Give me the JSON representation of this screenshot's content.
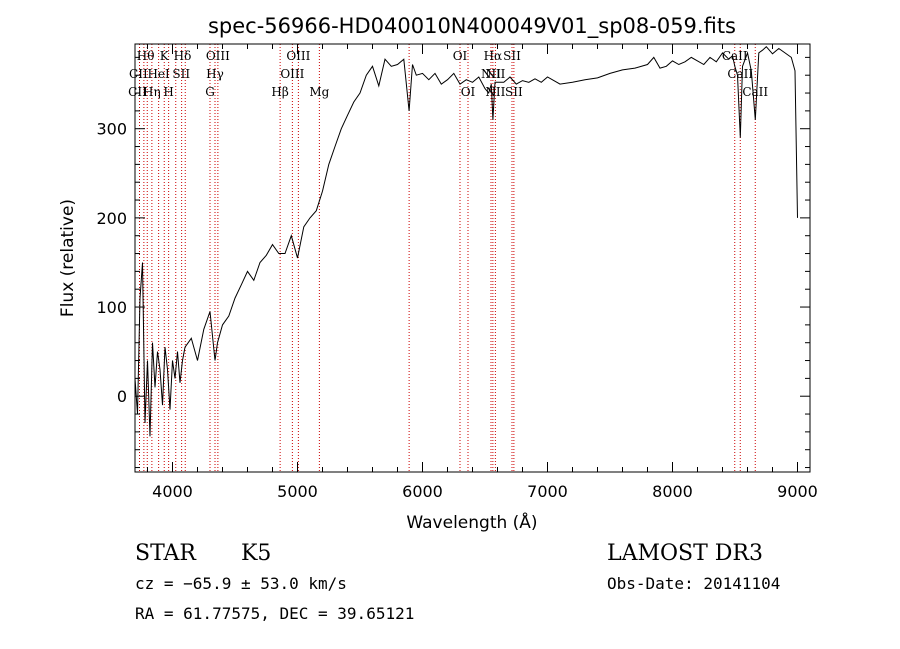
{
  "chart_data": {
    "type": "line",
    "title": "spec-56966-HD040010N400049V01_sp08-059.fits",
    "xlabel": "Wavelength (Å)",
    "ylabel": "Flux (relative)",
    "xlim": [
      3700,
      9100
    ],
    "ylim": [
      -85,
      395
    ],
    "x_ticks": [
      4000,
      5000,
      6000,
      7000,
      8000,
      9000
    ],
    "y_ticks": [
      0,
      100,
      200,
      300
    ],
    "grid": false,
    "series": [
      {
        "x": [
          3700,
          3720,
          3740,
          3760,
          3780,
          3800,
          3820,
          3840,
          3860,
          3880,
          3900,
          3920,
          3940,
          3960,
          3980,
          4000,
          4020,
          4040,
          4060,
          4080,
          4100,
          4150,
          4200,
          4250,
          4300,
          4340,
          4360,
          4400,
          4450,
          4500,
          4550,
          4600,
          4650,
          4700,
          4750,
          4800,
          4850,
          4900,
          4950,
          5000,
          5050,
          5100,
          5150,
          5200,
          5250,
          5300,
          5350,
          5400,
          5450,
          5500,
          5550,
          5600,
          5650,
          5700,
          5750,
          5800,
          5850,
          5893,
          5920,
          5950,
          6000,
          6050,
          6100,
          6150,
          6200,
          6250,
          6300,
          6350,
          6400,
          6450,
          6500,
          6530,
          6550,
          6563,
          6580,
          6600,
          6650,
          6700,
          6750,
          6800,
          6850,
          6900,
          6950,
          7000,
          7100,
          7200,
          7300,
          7400,
          7500,
          7600,
          7700,
          7800,
          7850,
          7900,
          7950,
          8000,
          8050,
          8100,
          8150,
          8200,
          8250,
          8300,
          8350,
          8400,
          8450,
          8480,
          8498,
          8520,
          8542,
          8560,
          8600,
          8630,
          8662,
          8690,
          8720,
          8750,
          8800,
          8850,
          8900,
          8950,
          8980,
          9000
        ],
        "y": [
          20,
          -20,
          110,
          150,
          -30,
          40,
          -45,
          60,
          10,
          50,
          30,
          -10,
          55,
          30,
          -15,
          40,
          20,
          50,
          15,
          40,
          55,
          65,
          40,
          75,
          95,
          40,
          60,
          80,
          90,
          110,
          125,
          140,
          130,
          150,
          158,
          170,
          160,
          160,
          180,
          155,
          190,
          200,
          208,
          230,
          260,
          280,
          300,
          315,
          330,
          340,
          360,
          370,
          348,
          378,
          370,
          372,
          378,
          320,
          372,
          360,
          362,
          355,
          362,
          350,
          355,
          362,
          350,
          355,
          352,
          358,
          345,
          340,
          350,
          310,
          352,
          352,
          352,
          358,
          350,
          354,
          352,
          356,
          352,
          358,
          350,
          352,
          355,
          357,
          362,
          366,
          368,
          372,
          380,
          368,
          370,
          376,
          372,
          375,
          380,
          376,
          372,
          380,
          375,
          385,
          378,
          382,
          370,
          360,
          290,
          370,
          385,
          365,
          310,
          385,
          388,
          392,
          384,
          390,
          385,
          380,
          365,
          200
        ]
      }
    ],
    "lines": {
      "wavelengths": [
        3736,
        3771,
        3798,
        3835,
        3889,
        3934,
        3969,
        4026,
        4073,
        4102,
        4300,
        4340,
        4363,
        4861,
        4959,
        5007,
        5175,
        5893,
        6300,
        6364,
        6548,
        6563,
        6583,
        6716,
        6731,
        8498,
        8542,
        8662
      ],
      "labels": [
        {
          "text": "Hθ",
          "w": 3785,
          "row": 0
        },
        {
          "text": "K",
          "w": 3934,
          "row": 0
        },
        {
          "text": "Hδ",
          "w": 4080,
          "row": 0
        },
        {
          "text": "OIII",
          "w": 4363,
          "row": 0
        },
        {
          "text": "OIII",
          "w": 5007,
          "row": 0
        },
        {
          "text": "OI",
          "w": 6300,
          "row": 0
        },
        {
          "text": "Hα",
          "w": 6563,
          "row": 0
        },
        {
          "text": "SII",
          "w": 6716,
          "row": 0
        },
        {
          "text": "CaII",
          "w": 8498,
          "row": 0
        },
        {
          "text": "CII",
          "w": 3727,
          "row": 1
        },
        {
          "text": "HeI",
          "w": 3889,
          "row": 1
        },
        {
          "text": "SII",
          "w": 4070,
          "row": 1
        },
        {
          "text": "Hγ",
          "w": 4340,
          "row": 1
        },
        {
          "text": "OIII",
          "w": 4959,
          "row": 1
        },
        {
          "text": "NII",
          "w": 6548,
          "row": 1
        },
        {
          "text": "NII",
          "w": 6583,
          "row": 1
        },
        {
          "text": "CaII",
          "w": 8542,
          "row": 1
        },
        {
          "text": "CII",
          "w": 3720,
          "row": 2
        },
        {
          "text": "Hη",
          "w": 3835,
          "row": 2
        },
        {
          "text": "H",
          "w": 3969,
          "row": 2
        },
        {
          "text": "G",
          "w": 4300,
          "row": 2
        },
        {
          "text": "Hβ",
          "w": 4861,
          "row": 2
        },
        {
          "text": "Mg",
          "w": 5175,
          "row": 2
        },
        {
          "text": "OI",
          "w": 6364,
          "row": 2
        },
        {
          "text": "NII",
          "w": 6583,
          "row": 2
        },
        {
          "text": "SII",
          "w": 6731,
          "row": 2
        },
        {
          "text": "CaII",
          "w": 8662,
          "row": 2
        }
      ]
    }
  },
  "footer": {
    "class_label": "STAR",
    "subclass": "K5",
    "survey": "LAMOST DR3",
    "cz": "cz = −65.9 ± 53.0 km/s",
    "obs_date": "Obs-Date: 20141104",
    "radec": "RA =  61.77575, DEC =  39.65121"
  },
  "colors": {
    "spectrum": "#000000",
    "line_markers": "#cc0000",
    "background": "#ffffff"
  }
}
